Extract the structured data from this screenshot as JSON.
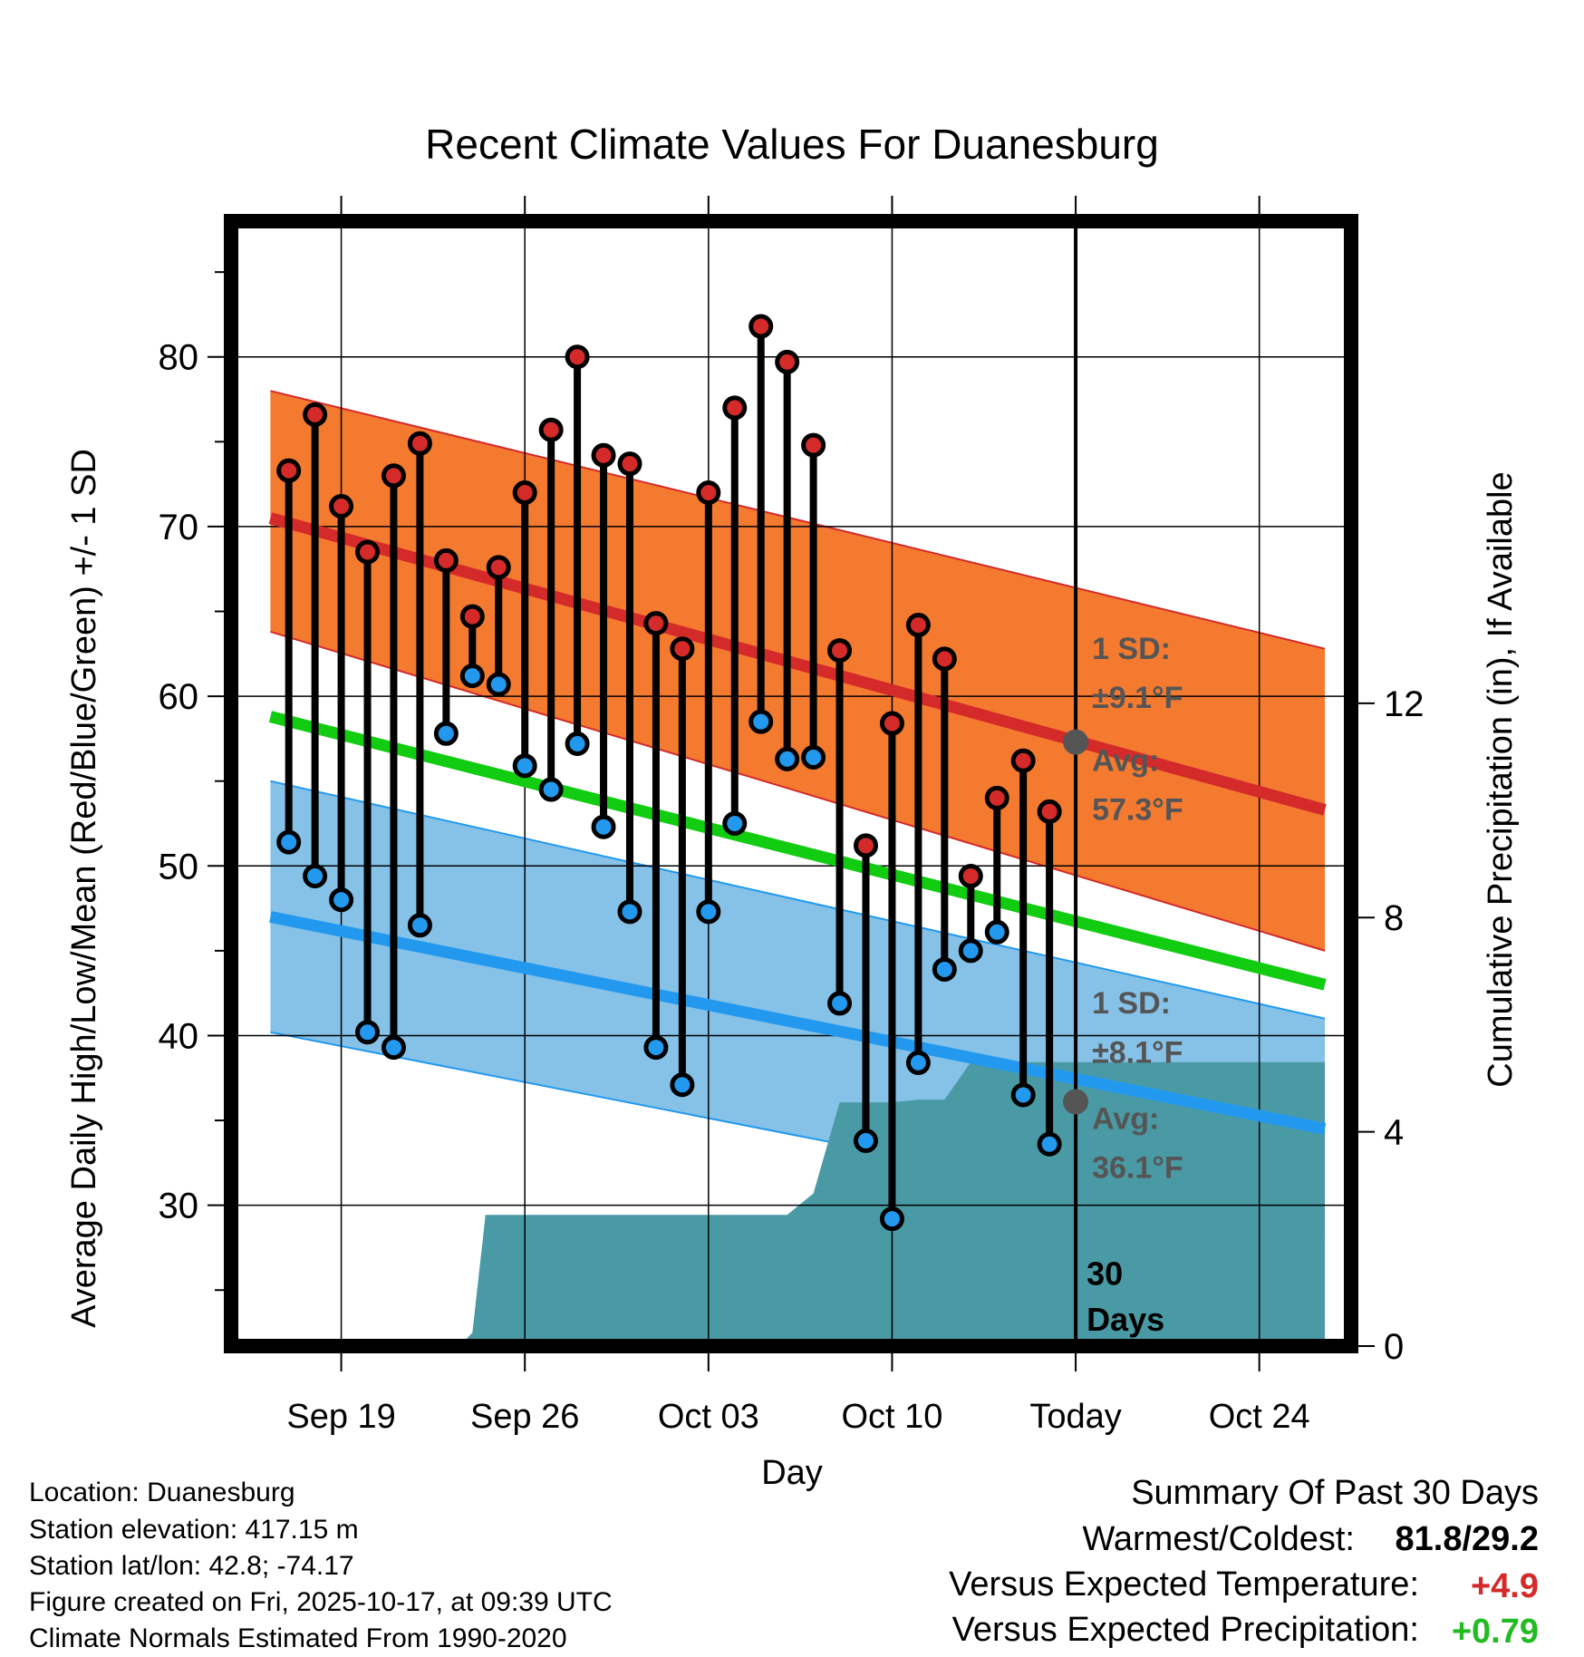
{
  "chart_data": {
    "type": "line",
    "title": "Recent Climate Values For Duanesburg",
    "xlabel": "Day",
    "ylabel_left": "Average Daily High/Low/Mean (Red/Blue/Green) +/- 1 SD",
    "ylabel_right": "Cumulative Precipitation (in), If Available",
    "x_range": [
      -4.2,
      38.5
    ],
    "ylim_left": [
      21.7,
      88.0
    ],
    "ylim_right": [
      0,
      21.0
    ],
    "x_ticks": [
      {
        "x": 0,
        "label": "Sep 19"
      },
      {
        "x": 7,
        "label": "Sep 26"
      },
      {
        "x": 14,
        "label": "Oct 03"
      },
      {
        "x": 21,
        "label": "Oct 10"
      },
      {
        "x": 28,
        "label": "Today"
      },
      {
        "x": 35,
        "label": "Oct 24"
      }
    ],
    "y_ticks_left": [
      30,
      40,
      50,
      60,
      70,
      80
    ],
    "y_ticks_right": [
      0,
      4,
      8,
      12
    ],
    "x_grid": [
      0,
      7,
      14,
      21,
      28,
      35
    ],
    "y_grid": [
      30,
      40,
      50,
      60,
      70,
      80
    ],
    "normals": {
      "high_mean": [
        70.5,
        53.3
      ],
      "high_sd_upper": [
        78.0,
        62.8
      ],
      "high_sd_lower": [
        63.8,
        45.0
      ],
      "low_mean": [
        47.0,
        34.5
      ],
      "low_sd_upper": [
        55.0,
        41.0
      ],
      "low_sd_lower": [
        40.2,
        28.0
      ],
      "daily_mean": [
        58.8,
        43.0
      ],
      "x_span": [
        -2.7,
        37.5
      ]
    },
    "series": [
      {
        "name": "Daily High",
        "color": "#d42a2a",
        "values": [
          73.3,
          76.6,
          71.2,
          68.5,
          73.0,
          74.9,
          68.0,
          64.7,
          67.6,
          72.0,
          75.7,
          80.0,
          74.2,
          73.7,
          64.3,
          62.8,
          72.0,
          77.0,
          81.8,
          79.7,
          74.8,
          62.7,
          51.2,
          58.4,
          64.2,
          62.2,
          49.4,
          54.0,
          56.2,
          53.2
        ]
      },
      {
        "name": "Daily Low",
        "color": "#2299ee",
        "values": [
          51.4,
          49.4,
          48.0,
          40.2,
          39.3,
          46.5,
          57.8,
          61.2,
          60.7,
          55.9,
          54.5,
          57.2,
          52.3,
          47.3,
          39.3,
          37.1,
          47.3,
          52.5,
          58.5,
          56.3,
          56.4,
          41.9,
          33.8,
          29.2,
          38.4,
          43.9,
          45.0,
          46.1,
          36.5,
          33.6
        ]
      }
    ],
    "x_days": [
      -2,
      -1,
      0,
      1,
      2,
      3,
      4,
      5,
      6,
      7,
      8,
      9,
      10,
      11,
      12,
      13,
      14,
      15,
      16,
      17,
      18,
      19,
      20,
      21,
      22,
      23,
      24,
      25,
      26,
      27
    ],
    "precipitation": {
      "name": "Cumulative Precipitation",
      "color": "#4a9aa5",
      "x": [
        -2.7,
        4.5,
        5.0,
        5.5,
        6.0,
        16.0,
        17.0,
        18.0,
        19.0,
        20.0,
        21.0,
        22.0,
        23.0,
        24.0,
        25.0,
        26.0,
        28.0,
        37.5
      ],
      "values": [
        0,
        0,
        0.25,
        2.45,
        2.45,
        2.45,
        2.45,
        2.85,
        4.55,
        4.55,
        4.55,
        4.6,
        4.6,
        5.3,
        5.3,
        5.3,
        5.3,
        5.3
      ]
    },
    "today_x": 28,
    "annotations": {
      "high_sd": {
        "line1": "1 SD:",
        "line2": "±9.1°F"
      },
      "high_avg": {
        "line1": "Avg:",
        "line2": "57.3°F",
        "value": 57.3
      },
      "low_sd": {
        "line1": "1 SD:",
        "line2": "±8.1°F"
      },
      "low_avg": {
        "line1": "Avg:",
        "line2": "36.1°F",
        "value": 36.1
      },
      "days_line1": "30",
      "days_line2": "Days"
    }
  },
  "info": {
    "location": "Location: Duanesburg",
    "elevation": "Station elevation: 417.15 m",
    "latlon": "Station lat/lon: 42.8; -74.17",
    "created": "Figure created on Fri, 2025-10-17, at 09:39 UTC",
    "normals": "Climate Normals Estimated From 1990-2020"
  },
  "summary": {
    "title": "Summary Of Past 30 Days",
    "warm_cold_label": "Warmest/Coldest:",
    "warm_cold_value": "81.8/29.2",
    "temp_label": "Versus Expected Temperature:",
    "temp_value": "+4.9",
    "temp_color": "#d42a2a",
    "precip_label": "Versus Expected Precipitation:",
    "precip_value": "+0.79",
    "precip_color": "#22bb22"
  },
  "colors": {
    "high_band": "#f47a30",
    "high_line": "#d42a2a",
    "low_band": "#86c2e8",
    "low_line": "#2299ee",
    "mean_line": "#11cc11",
    "precip": "#4a9aa5",
    "annotation": "#555555"
  }
}
